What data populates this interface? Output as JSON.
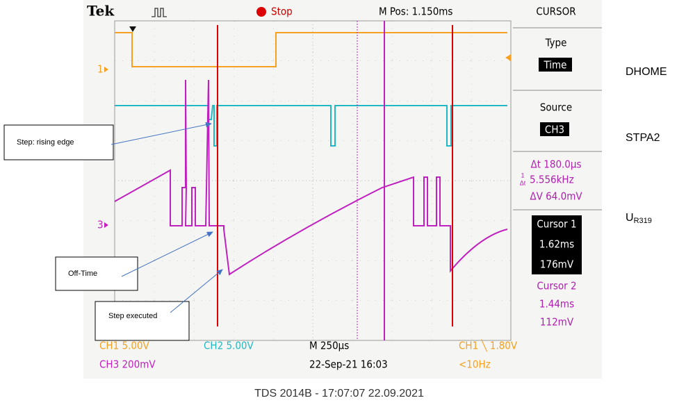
{
  "scope": {
    "header": {
      "brand": "Tek",
      "status": "Stop",
      "position": "M Pos: 1.150ms",
      "menu": "CURSOR"
    },
    "menu": {
      "type_label": "Type",
      "type_value": "Time",
      "source_label": "Source",
      "source_value": "CH3",
      "delta_t": "Δt 180.0µs",
      "freq_num": "1",
      "freq_den": "Δt",
      "freq": "5.556kHz",
      "delta_v": "ΔV 64.0mV",
      "cursor1": {
        "label": "Cursor 1",
        "time": "1.62ms",
        "volt": "176mV"
      },
      "cursor2": {
        "label": "Cursor 2",
        "time": "1.44ms",
        "volt": "112mV"
      }
    },
    "markers": {
      "ch1": "1",
      "ch3": "3"
    },
    "status_bar": {
      "ch1": "CH1  5.00V",
      "ch2": "CH2  5.00V",
      "timebase": "M 250µs",
      "trigger": "CH1 ╲ 1.80V",
      "ch3": "CH3  200mV",
      "date": "22-Sep-21 16:03",
      "freq": "<10Hz"
    }
  },
  "footer": "TDS 2014B - 17:07:07   22.09.2021",
  "signals": {
    "dhome": "DHOME",
    "stpa2": "STPA2",
    "ur319": {
      "main": "U",
      "sub": "R319"
    }
  },
  "annotations": [
    "Step: rising edge",
    "Off-Time",
    "Step executed"
  ]
}
